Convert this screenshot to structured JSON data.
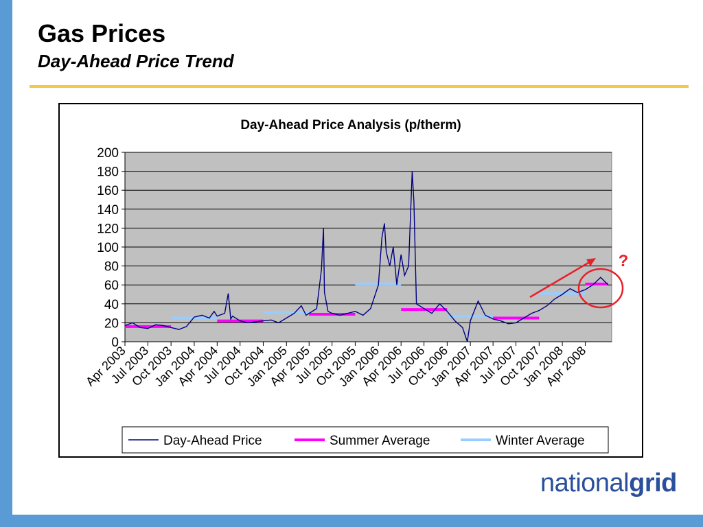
{
  "slide": {
    "title": "Gas Prices",
    "subtitle": "Day-Ahead Price Trend"
  },
  "logo": {
    "light": "national",
    "bold": "grid"
  },
  "annotation": {
    "mark": "?"
  },
  "colors": {
    "accent_bar": "#5b9bd5",
    "rule": "#f5c842",
    "plot_bg": "#c0c0c0",
    "day_ahead": "#000080",
    "summer": "#ff00ff",
    "winter": "#99ccff",
    "annotation": "#e8202a",
    "logo": "#2a4f9b"
  },
  "chart_data": {
    "type": "line",
    "title": "Day-Ahead Price Analysis (p/therm)",
    "xlabel": "",
    "ylabel": "",
    "ylim": [
      0,
      200
    ],
    "yticks": [
      0,
      20,
      40,
      60,
      80,
      100,
      120,
      140,
      160,
      180,
      200
    ],
    "xticks": [
      "Apr 2003",
      "Jul 2003",
      "Oct 2003",
      "Jan 2004",
      "Apr 2004",
      "Jul 2004",
      "Oct 2004",
      "Jan 2005",
      "Apr 2005",
      "Jul 2005",
      "Oct 2005",
      "Jan 2006",
      "Apr 2006",
      "Jul 2006",
      "Oct 2006",
      "Jan 2007",
      "Apr 2007",
      "Jul 2007",
      "Oct 2007",
      "Jan 2008",
      "Apr 2008"
    ],
    "grid": true,
    "legend_position": "bottom",
    "series": [
      {
        "name": "Day-Ahead Price",
        "color": "#000080",
        "points": [
          [
            "2003-04",
            17
          ],
          [
            "2003-05",
            20
          ],
          [
            "2003-06",
            15
          ],
          [
            "2003-07",
            14
          ],
          [
            "2003-08",
            18
          ],
          [
            "2003-09",
            17
          ],
          [
            "2003-10",
            15
          ],
          [
            "2003-11",
            13
          ],
          [
            "2003-12",
            16
          ],
          [
            "2004-01",
            26
          ],
          [
            "2004-02",
            28
          ],
          [
            "2004-03",
            25
          ],
          [
            "2004-03-20",
            32
          ],
          [
            "2004-04",
            27
          ],
          [
            "2004-05",
            30
          ],
          [
            "2004-05-15",
            51
          ],
          [
            "2004-05-25",
            24
          ],
          [
            "2004-06",
            27
          ],
          [
            "2004-07",
            22
          ],
          [
            "2004-08",
            20
          ],
          [
            "2004-09",
            21
          ],
          [
            "2004-10",
            22
          ],
          [
            "2004-11",
            23
          ],
          [
            "2004-12",
            20
          ],
          [
            "2005-01",
            25
          ],
          [
            "2005-02",
            30
          ],
          [
            "2005-03",
            38
          ],
          [
            "2005-03-20",
            28
          ],
          [
            "2005-04",
            30
          ],
          [
            "2005-05",
            35
          ],
          [
            "2005-05-20",
            76
          ],
          [
            "2005-05-28",
            120
          ],
          [
            "2005-06",
            52
          ],
          [
            "2005-06-15",
            32
          ],
          [
            "2005-07",
            30
          ],
          [
            "2005-08",
            28
          ],
          [
            "2005-09",
            30
          ],
          [
            "2005-10",
            32
          ],
          [
            "2005-11",
            28
          ],
          [
            "2005-12",
            35
          ],
          [
            "2006-01",
            60
          ],
          [
            "2006-01-15",
            110
          ],
          [
            "2006-01-25",
            125
          ],
          [
            "2006-02",
            95
          ],
          [
            "2006-02-15",
            80
          ],
          [
            "2006-03",
            100
          ],
          [
            "2006-03-15",
            60
          ],
          [
            "2006-04",
            92
          ],
          [
            "2006-04-15",
            70
          ],
          [
            "2006-05",
            80
          ],
          [
            "2006-05-15",
            180
          ],
          [
            "2006-05-22",
            148
          ],
          [
            "2006-06",
            40
          ],
          [
            "2006-07",
            35
          ],
          [
            "2006-08",
            30
          ],
          [
            "2006-09",
            40
          ],
          [
            "2006-10",
            32
          ],
          [
            "2006-11",
            22
          ],
          [
            "2006-12",
            15
          ],
          [
            "2006-12-20",
            0
          ],
          [
            "2007-01",
            22
          ],
          [
            "2007-02",
            43
          ],
          [
            "2007-03",
            28
          ],
          [
            "2007-04",
            24
          ],
          [
            "2007-05",
            22
          ],
          [
            "2007-06",
            19
          ],
          [
            "2007-07",
            20
          ],
          [
            "2007-08",
            25
          ],
          [
            "2007-09",
            30
          ],
          [
            "2007-10",
            33
          ],
          [
            "2007-11",
            38
          ],
          [
            "2007-12",
            45
          ],
          [
            "2008-01",
            50
          ],
          [
            "2008-02",
            56
          ],
          [
            "2008-03",
            52
          ],
          [
            "2008-04",
            55
          ],
          [
            "2008-05",
            60
          ],
          [
            "2008-06",
            68
          ],
          [
            "2008-07",
            60
          ]
        ]
      },
      {
        "name": "Summer Average",
        "color": "#ff00ff",
        "segments": [
          {
            "start": "2003-04",
            "end": "2003-10",
            "value": 16
          },
          {
            "start": "2004-04",
            "end": "2004-10",
            "value": 22
          },
          {
            "start": "2005-04",
            "end": "2005-10",
            "value": 29
          },
          {
            "start": "2006-04",
            "end": "2006-10",
            "value": 34
          },
          {
            "start": "2007-04",
            "end": "2007-10",
            "value": 25
          },
          {
            "start": "2008-04",
            "end": "2008-07",
            "value": 61
          }
        ]
      },
      {
        "name": "Winter Average",
        "color": "#99ccff",
        "segments": [
          {
            "start": "2003-10",
            "end": "2004-04",
            "value": 25
          },
          {
            "start": "2004-10",
            "end": "2005-04",
            "value": 31
          },
          {
            "start": "2005-10",
            "end": "2006-04",
            "value": 61
          },
          {
            "start": "2006-10",
            "end": "2007-04",
            "value": 27
          },
          {
            "start": "2007-10",
            "end": "2008-04",
            "value": 51
          }
        ]
      }
    ]
  }
}
